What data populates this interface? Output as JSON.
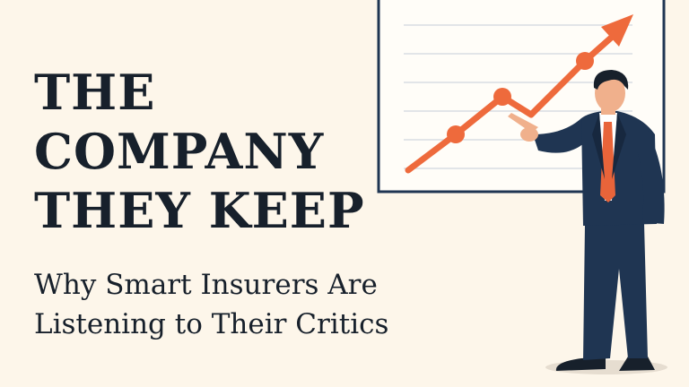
{
  "headline": {
    "line1": "THE",
    "line2": "COMPANY",
    "line3": "THEY KEEP"
  },
  "subtitle": {
    "line1": "Why Smart Insurers Are",
    "line2": "Listening to Their Critics"
  },
  "colors": {
    "background": "#fdf6ea",
    "text": "#17202b",
    "arrow": "#ee6a3c",
    "suit": "#1f3552",
    "tie": "#e8643a",
    "skin": "#f0b08c"
  },
  "icons": {
    "chart": "upward-trend-arrow-board",
    "figure": "businessman-pointing"
  }
}
